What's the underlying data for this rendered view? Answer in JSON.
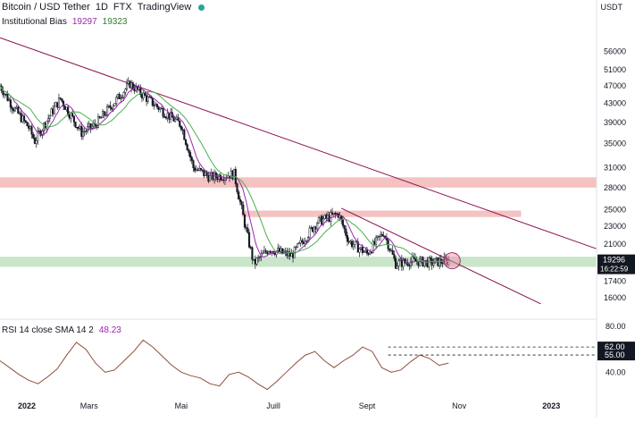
{
  "header": {
    "title": "Bitcoin / USD Tether",
    "interval": "1D",
    "exchange": "FTX",
    "source": "TradingView"
  },
  "indicator": {
    "name": "Institutional Bias",
    "value1": "19297",
    "value2": "19323"
  },
  "rsi": {
    "label": "RSI 14 close SMA 14 2",
    "value": "48.23"
  },
  "axis": {
    "unit": "USDT",
    "price_ticks": [
      "56000",
      "51000",
      "47000",
      "43000",
      "39000",
      "35000",
      "31000",
      "28000",
      "25000",
      "23000",
      "21000",
      "17400",
      "16000"
    ],
    "current_price": "19296",
    "countdown": "16:22:59",
    "rsi_ticks": [
      "80.00",
      "40.00"
    ],
    "rsi_levels": [
      "62.00",
      "55.00"
    ],
    "x_ticks": [
      "2022",
      "Mars",
      "Mai",
      "Juill",
      "Sept",
      "Nov",
      "2023"
    ]
  },
  "watermark": "",
  "colors": {
    "candle": "#131722",
    "ma_fast": "#9c27b0",
    "ma_slow": "#4caf50",
    "trendline": "#880e4f",
    "resistance_zone": "#ef9a9a",
    "support_zone": "#a5d6a7",
    "highlight_circle": "#f48fb1",
    "rsi_line": "#8d4e3c",
    "price_badge": "#131722"
  },
  "chart_data": [
    {
      "type": "candlestick",
      "title": "Bitcoin / USD Tether · 1D · FTX",
      "y_scale": "log",
      "ylim": [
        15000,
        62000
      ],
      "x_range": [
        "2022-01-01",
        "2023-01-31"
      ],
      "series": [
        {
          "name": "Institutional Bias",
          "close_path": [
            [
              "2022-01-01",
              47000
            ],
            [
              "2022-01-10",
              42000
            ],
            [
              "2022-01-20",
              38000
            ],
            [
              "2022-01-24",
              35500
            ],
            [
              "2022-02-05",
              41500
            ],
            [
              "2022-02-10",
              44000
            ],
            [
              "2022-02-24",
              37000
            ],
            [
              "2022-03-05",
              38500
            ],
            [
              "2022-03-28",
              47500
            ],
            [
              "2022-04-05",
              45000
            ],
            [
              "2022-04-20",
              41000
            ],
            [
              "2022-05-01",
              38500
            ],
            [
              "2022-05-09",
              31000
            ],
            [
              "2022-05-20",
              29500
            ],
            [
              "2022-06-05",
              30000
            ],
            [
              "2022-06-13",
              22500
            ],
            [
              "2022-06-18",
              19000
            ],
            [
              "2022-06-28",
              20500
            ],
            [
              "2022-07-13",
              19800
            ],
            [
              "2022-07-30",
              23500
            ],
            [
              "2022-08-13",
              24500
            ],
            [
              "2022-08-20",
              21300
            ],
            [
              "2022-09-01",
              20000
            ],
            [
              "2022-09-12",
              22300
            ],
            [
              "2022-09-20",
              19000
            ],
            [
              "2022-10-01",
              19300
            ],
            [
              "2022-10-13",
              19100
            ],
            [
              "2022-10-25",
              19300
            ]
          ]
        },
        {
          "name": "19297",
          "kind": "fast_ma"
        },
        {
          "name": "19323",
          "kind": "slow_ma"
        }
      ],
      "zones": [
        {
          "name": "resistance",
          "from": 28000,
          "to": 29500
        },
        {
          "name": "resistance",
          "from": 24100,
          "to": 24900
        },
        {
          "name": "support",
          "from": 18700,
          "to": 19700
        }
      ],
      "trendlines": [
        {
          "from": [
            "2022-01-01",
            60000
          ],
          "to": [
            "2023-01-31",
            20500
          ]
        },
        {
          "from": [
            "2022-08-15",
            25200
          ],
          "to": [
            "2022-12-25",
            15500
          ]
        }
      ],
      "last_price": 19296
    },
    {
      "type": "line",
      "title": "RSI 14 close SMA 14 2",
      "ylim": [
        20,
        80
      ],
      "hlines": [
        62,
        55
      ],
      "series": [
        {
          "name": "RSI",
          "values": [
            50,
            44,
            38,
            33,
            30,
            36,
            43,
            55,
            66,
            60,
            48,
            40,
            42,
            50,
            58,
            68,
            62,
            54,
            46,
            40,
            37,
            35,
            30,
            28,
            38,
            40,
            36,
            30,
            25,
            32,
            40,
            48,
            55,
            58,
            50,
            44,
            50,
            55,
            62,
            58,
            44,
            40,
            42,
            49,
            55,
            52,
            46,
            48
          ]
        }
      ],
      "last_value": 48.23
    }
  ]
}
